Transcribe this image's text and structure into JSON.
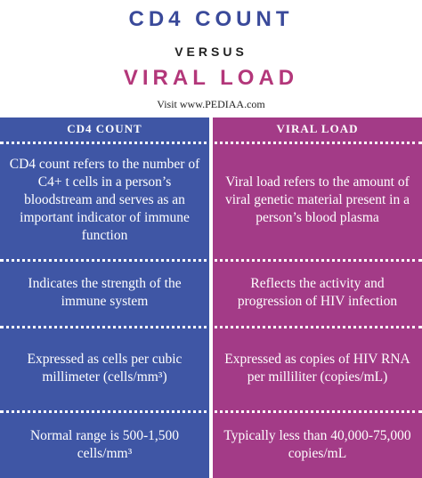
{
  "title": {
    "line1": "CD4 COUNT",
    "line2": "VERSUS",
    "line3": "VIRAL LOAD",
    "visit": "Visit www.PEDIAA.com"
  },
  "colors": {
    "left_column": "#3f56a5",
    "right_column": "#a33b87",
    "title_blue": "#3a4a9a",
    "title_pink": "#b3377a"
  },
  "headers": {
    "left": "CD4 COUNT",
    "right": "VIRAL LOAD"
  },
  "rows": [
    {
      "left": "CD4 count refers to the number of C4+ t cells in a person’s bloodstream and serves as an important indicator of immune function",
      "right": "Viral load refers to the amount of viral genetic material present in a person’s blood plasma"
    },
    {
      "left": "Indicates the strength of the immune system",
      "right": "Reflects the activity and progression of HIV infection"
    },
    {
      "left": "Expressed as cells per cubic millimeter (cells/mm³)",
      "right": "Expressed as copies of HIV RNA per milliliter (copies/mL)"
    },
    {
      "left": "Normal range is 500-1,500 cells/mm³",
      "right": "Typically less than 40,000-75,000 copies/mL"
    }
  ]
}
